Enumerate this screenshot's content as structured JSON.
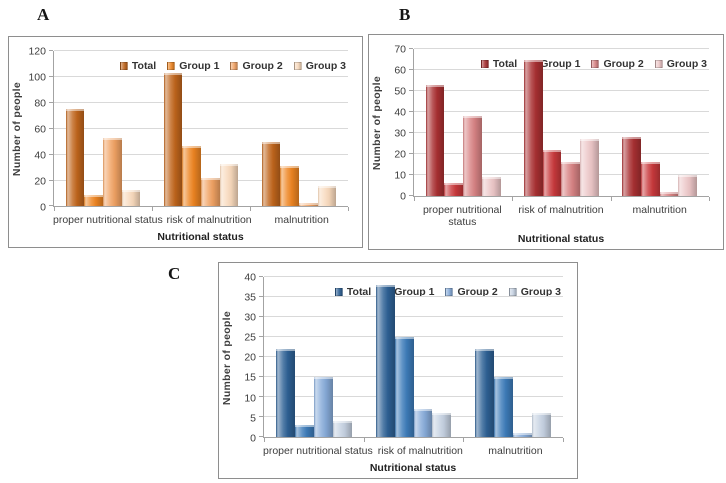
{
  "chart_data": [
    {
      "panel_label": "A",
      "type": "bar",
      "ylabel": "Number of people",
      "xlabel": "Nutritional status",
      "ylim": [
        0,
        120
      ],
      "yticks": [
        0,
        20,
        40,
        60,
        80,
        100,
        120
      ],
      "grid": true,
      "legend_position": "top-right",
      "categories": [
        "proper nutritional status",
        "risk of malnutrition",
        "malnutrition"
      ],
      "series": [
        {
          "name": "Total",
          "color": "#c0651c",
          "values": [
            75,
            103,
            50
          ]
        },
        {
          "name": "Group 1",
          "color": "#ee8522",
          "values": [
            9,
            47,
            31
          ]
        },
        {
          "name": "Group 2",
          "color": "#f1a263",
          "values": [
            53,
            22,
            3
          ]
        },
        {
          "name": "Group 3",
          "color": "#f8d9bc",
          "values": [
            13,
            33,
            16
          ]
        }
      ]
    },
    {
      "panel_label": "B",
      "type": "bar",
      "ylabel": "Number of people",
      "xlabel": "Nutritional status",
      "ylim": [
        0,
        70
      ],
      "yticks": [
        0,
        10,
        20,
        30,
        40,
        50,
        60,
        70
      ],
      "grid": true,
      "legend_position": "top-right",
      "categories": [
        "proper nutritional status",
        "risk of malnutrition",
        "malnutrition"
      ],
      "series": [
        {
          "name": "Total",
          "color": "#a93032",
          "values": [
            53,
            65,
            28
          ]
        },
        {
          "name": "Group 1",
          "color": "#c9393c",
          "values": [
            6,
            22,
            16
          ]
        },
        {
          "name": "Group 2",
          "color": "#d88384",
          "values": [
            38,
            16,
            2
          ]
        },
        {
          "name": "Group 3",
          "color": "#ecc6c7",
          "values": [
            9,
            27,
            10
          ]
        }
      ]
    },
    {
      "panel_label": "C",
      "type": "bar",
      "ylabel": "Number of people",
      "xlabel": "Nutritional status",
      "ylim": [
        0,
        40
      ],
      "yticks": [
        0,
        5,
        10,
        15,
        20,
        25,
        30,
        35,
        40
      ],
      "grid": true,
      "legend_position": "top-right",
      "categories": [
        "proper nutritional status",
        "risk of malnutrition",
        "malnutrition"
      ],
      "series": [
        {
          "name": "Total",
          "color": "#2e6195",
          "values": [
            22,
            38,
            22
          ]
        },
        {
          "name": "Group 1",
          "color": "#3d7cba",
          "values": [
            3,
            25,
            15
          ]
        },
        {
          "name": "Group 2",
          "color": "#87abd9",
          "values": [
            15,
            7,
            1
          ]
        },
        {
          "name": "Group 3",
          "color": "#c5d1e1",
          "values": [
            4,
            6,
            6
          ]
        }
      ]
    }
  ]
}
